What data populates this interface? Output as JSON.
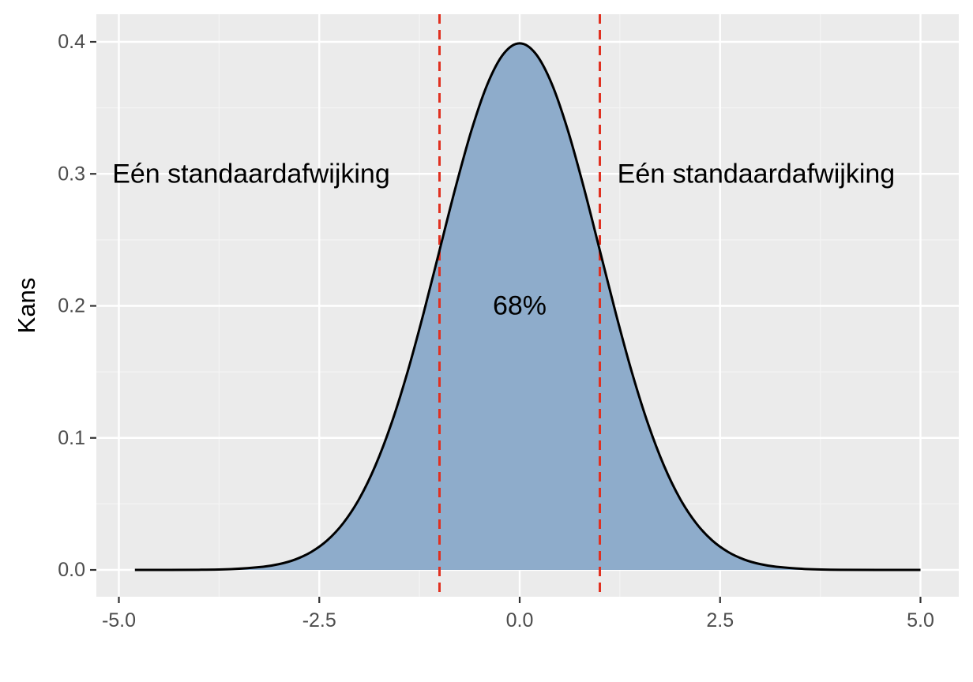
{
  "chart_data": {
    "type": "area",
    "title": "",
    "xlabel": "",
    "ylabel": "Kans",
    "xlim": [
      -5.5,
      5.5
    ],
    "ylim": [
      -0.02,
      0.42
    ],
    "x_ticks": [
      -5.0,
      -2.5,
      0.0,
      2.5,
      5.0
    ],
    "x_tick_labels": [
      "-5.0",
      "-2.5",
      "0.0",
      "2.5",
      "5.0"
    ],
    "y_ticks": [
      0.0,
      0.1,
      0.2,
      0.3,
      0.4
    ],
    "y_tick_labels": [
      "0.0",
      "0.1",
      "0.2",
      "0.3",
      "0.4"
    ],
    "grid": true,
    "series": [
      {
        "x": [
          -4.8,
          -4.0,
          -3.6,
          -3.2,
          -3.0,
          -2.8,
          -2.6,
          -2.4,
          -2.2,
          -2.0,
          -1.8,
          -1.6,
          -1.4,
          -1.2,
          -1.0,
          -0.8,
          -0.6,
          -0.4,
          -0.2,
          0.0,
          0.2,
          0.4,
          0.6,
          0.8,
          1.0,
          1.2,
          1.4,
          1.6,
          1.8,
          2.0,
          2.2,
          2.4,
          2.6,
          2.8,
          3.0,
          3.2,
          3.6,
          4.0,
          5.0
        ],
        "y": [
          0.0,
          0.0001,
          0.0006,
          0.0024,
          0.0044,
          0.0079,
          0.0136,
          0.0224,
          0.0355,
          0.054,
          0.079,
          0.1109,
          0.1497,
          0.1942,
          0.242,
          0.2897,
          0.3332,
          0.3683,
          0.391,
          0.3989,
          0.391,
          0.3683,
          0.3332,
          0.2897,
          0.242,
          0.1942,
          0.1497,
          0.1109,
          0.079,
          0.054,
          0.0355,
          0.0224,
          0.0136,
          0.0079,
          0.0044,
          0.0024,
          0.0006,
          0.0001,
          0.0
        ],
        "fill": "#8eaccb",
        "line_color": "#000000"
      }
    ],
    "vlines": [
      {
        "x": -1.0,
        "color": "#e03020",
        "style": "dashed"
      },
      {
        "x": 1.0,
        "color": "#e03020",
        "style": "dashed"
      }
    ],
    "annotations": [
      {
        "text": "Eén standaardafwijking",
        "x": -3.35,
        "y": 0.3
      },
      {
        "text": "Eén standaardafwijking",
        "x": 2.95,
        "y": 0.3
      },
      {
        "text": "68%",
        "x": 0.0,
        "y": 0.2
      }
    ],
    "colors": {
      "panel_background": "#ebebeb",
      "grid_major": "#ffffff",
      "grid_minor": "#f4f4f4"
    }
  }
}
